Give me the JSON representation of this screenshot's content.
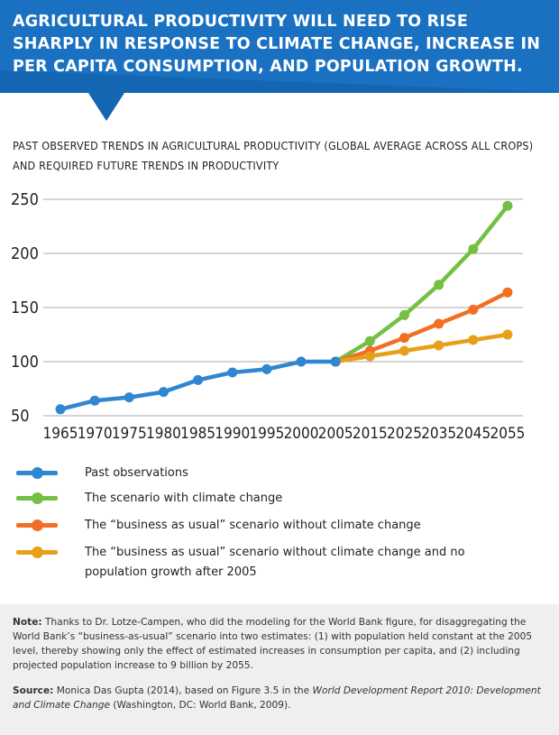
{
  "headline": "AGRICULTURAL PRODUCTIVITY WILL NEED TO RISE SHARPLY IN RESPONSE TO CLIMATE CHANGE, INCREASE IN PER CAPITA CONSUMPTION, AND POPULATION GROWTH.",
  "colors": {
    "banner": "#1a71c2",
    "banner_dark": "#125da6",
    "past": "#2f86d1",
    "climate": "#74c043",
    "bau": "#f26e24",
    "bau_nopop": "#e6a019",
    "grid": "#a8a8a8",
    "notes_bg": "#efefef"
  },
  "chart_data": {
    "type": "line",
    "title": "PAST OBSERVED TRENDS IN AGRICULTURAL PRODUCTIVITY (GLOBAL AVERAGE ACROSS ALL CROPS) AND REQUIRED FUTURE TRENDS IN PRODUCTIVITY",
    "xlabel": "",
    "ylabel": "",
    "categories": [
      "1965",
      "1970",
      "1975",
      "1980",
      "1985",
      "1990",
      "1995",
      "2000",
      "2005",
      "2015",
      "2025",
      "2035",
      "2045",
      "2055"
    ],
    "ylim": [
      50,
      250
    ],
    "yticks": [
      50,
      100,
      150,
      200,
      250
    ],
    "grid": true,
    "legend_position": "bottom",
    "series": [
      {
        "name": "Past observations",
        "color_key": "past",
        "x": [
          "1965",
          "1970",
          "1975",
          "1980",
          "1985",
          "1990",
          "1995",
          "2000",
          "2005"
        ],
        "values": [
          56,
          64,
          67,
          72,
          83,
          90,
          93,
          100,
          100
        ]
      },
      {
        "name": "The scenario with climate change",
        "color_key": "climate",
        "x": [
          "2005",
          "2015",
          "2025",
          "2035",
          "2045",
          "2055"
        ],
        "values": [
          100,
          119,
          143,
          171,
          204,
          244
        ]
      },
      {
        "name": "The “business as usual” scenario without climate change",
        "color_key": "bau",
        "x": [
          "2005",
          "2015",
          "2025",
          "2035",
          "2045",
          "2055"
        ],
        "values": [
          100,
          110,
          122,
          135,
          148,
          164
        ]
      },
      {
        "name": "The “business as usual” scenario without climate change and no population growth after 2005",
        "color_key": "bau_nopop",
        "x": [
          "2005",
          "2015",
          "2025",
          "2035",
          "2045",
          "2055"
        ],
        "values": [
          100,
          105,
          110,
          115,
          120,
          125
        ]
      }
    ]
  },
  "legend": [
    {
      "label": "Past observations",
      "color_key": "past"
    },
    {
      "label": "The scenario with climate change",
      "color_key": "climate"
    },
    {
      "label": "The “business as usual” scenario without climate change",
      "color_key": "bau"
    },
    {
      "label": "The “business as usual” scenario without climate change and no population growth after 2005",
      "color_key": "bau_nopop"
    }
  ],
  "notes": {
    "note_label": "Note:",
    "note_text": "Thanks to Dr. Lotze-Campen, who did the modeling for the World Bank figure, for disaggregating the World Bank’s “business-as-usual” scenario into two estimates: (1) with population held constant at the 2005 level, thereby showing only the effect of estimated increases in consumption per capita, and (2) including projected population increase to 9 billion by 2055.",
    "source_label": "Source:",
    "source_text_1": "Monica Das Gupta (2014), based on Figure 3.5 in the",
    "source_italic": "World Development Report 2010: Development and Climate Change",
    "source_text_2": "(Washington, DC: World Bank, 2009)."
  }
}
